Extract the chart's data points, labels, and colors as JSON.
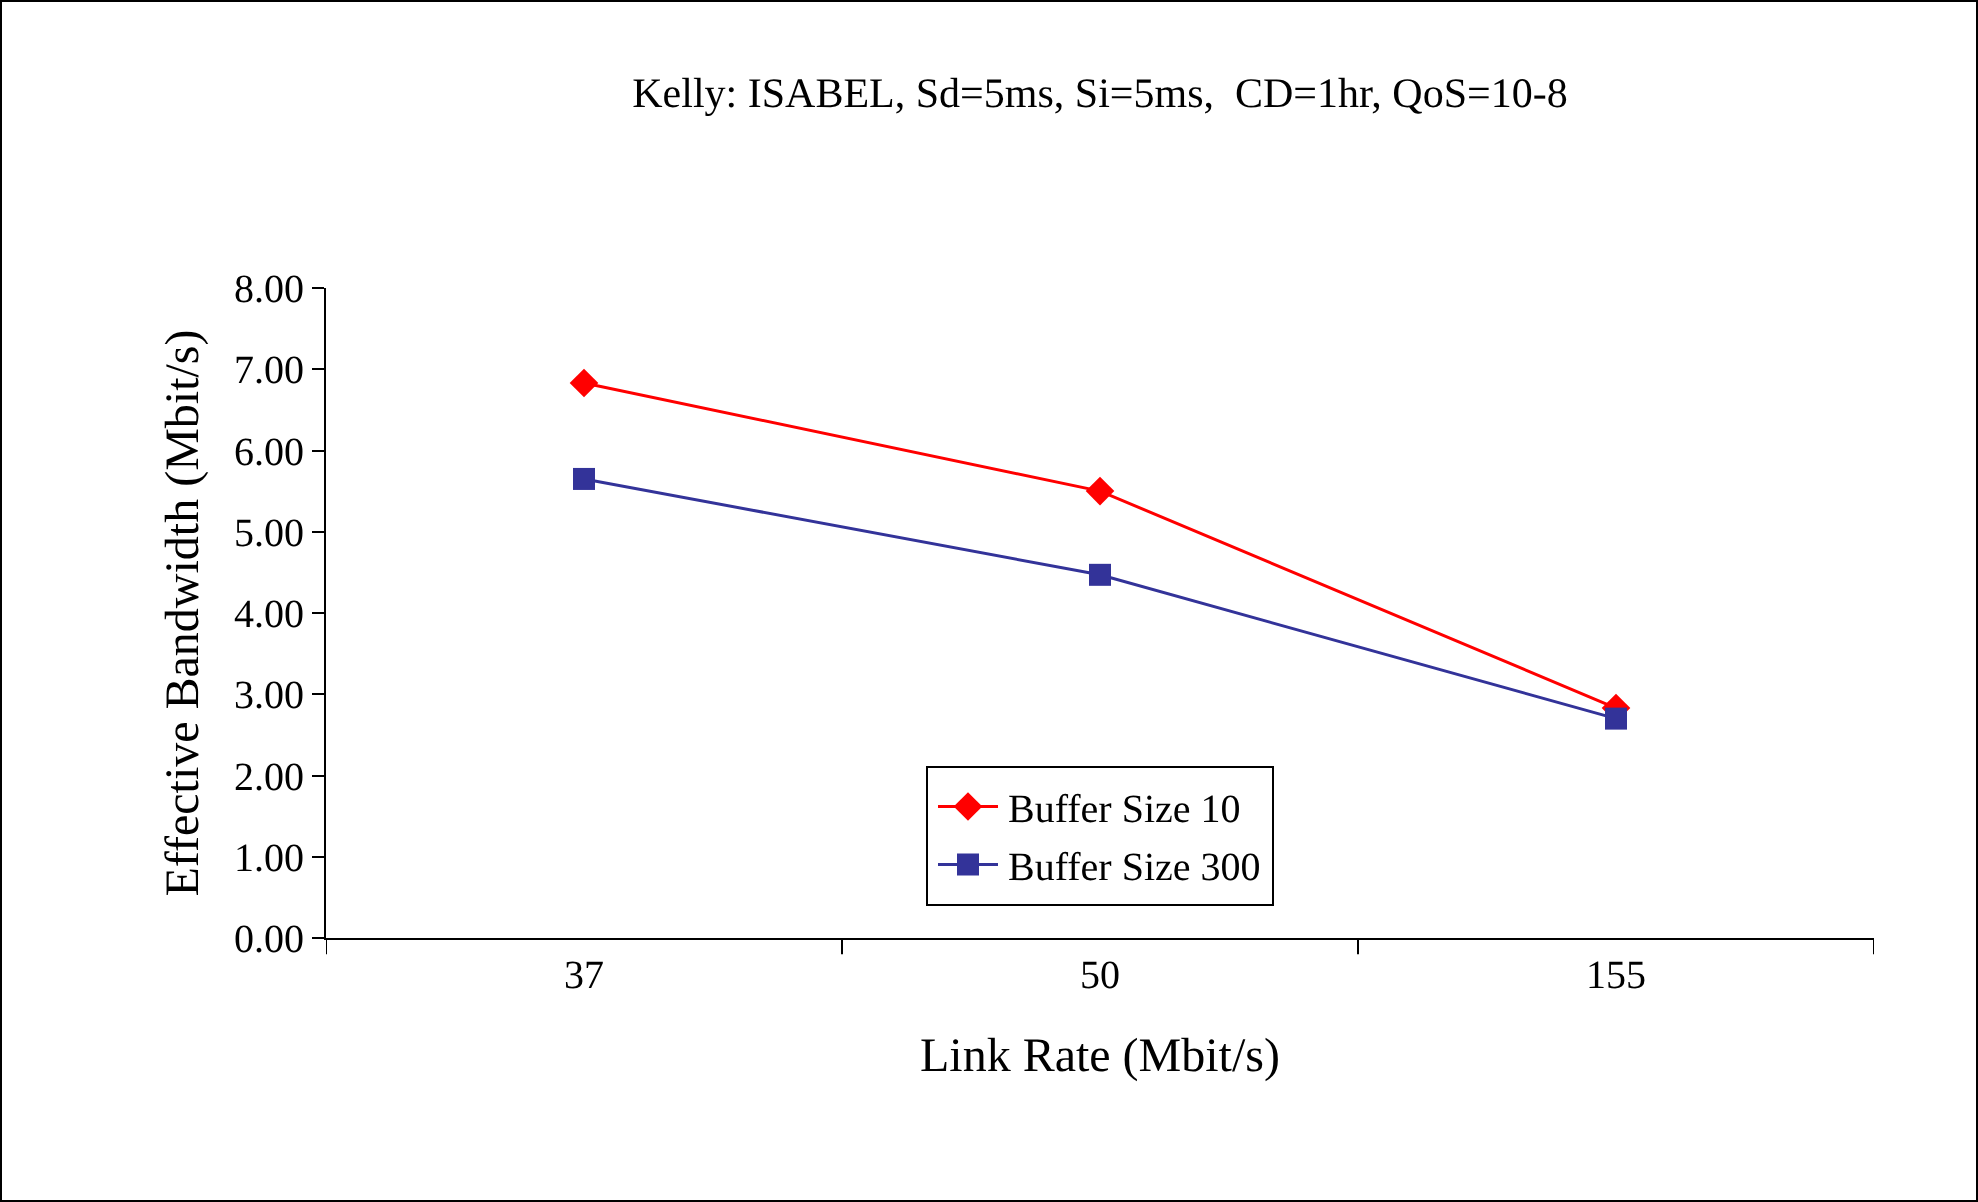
{
  "chart_data": {
    "type": "line",
    "title": "Kelly: ISABEL, Sd=5ms, Si=5ms,  CD=1hr, QoS=10-8",
    "xlabel": "Link Rate (Mbit/s)",
    "ylabel": "Effective Bandwidth (Mbit/s)",
    "categories": [
      "37",
      "50",
      "155"
    ],
    "series": [
      {
        "name": "Buffer Size 10",
        "color": "#ff0000",
        "marker": "diamond",
        "values": [
          6.83,
          5.5,
          2.83
        ]
      },
      {
        "name": "Buffer Size 300",
        "color": "#333399",
        "marker": "square",
        "values": [
          5.65,
          4.47,
          2.7
        ]
      }
    ],
    "ylim": [
      0,
      8
    ],
    "yticks": [
      {
        "value": 0,
        "label": "0.00"
      },
      {
        "value": 1,
        "label": "1.00"
      },
      {
        "value": 2,
        "label": "2.00"
      },
      {
        "value": 3,
        "label": "3.00"
      },
      {
        "value": 4,
        "label": "4.00"
      },
      {
        "value": 5,
        "label": "5.00"
      },
      {
        "value": 6,
        "label": "6.00"
      },
      {
        "value": 7,
        "label": "7.00"
      },
      {
        "value": 8,
        "label": "8.00"
      }
    ],
    "grid": false,
    "legend": "bottom"
  }
}
